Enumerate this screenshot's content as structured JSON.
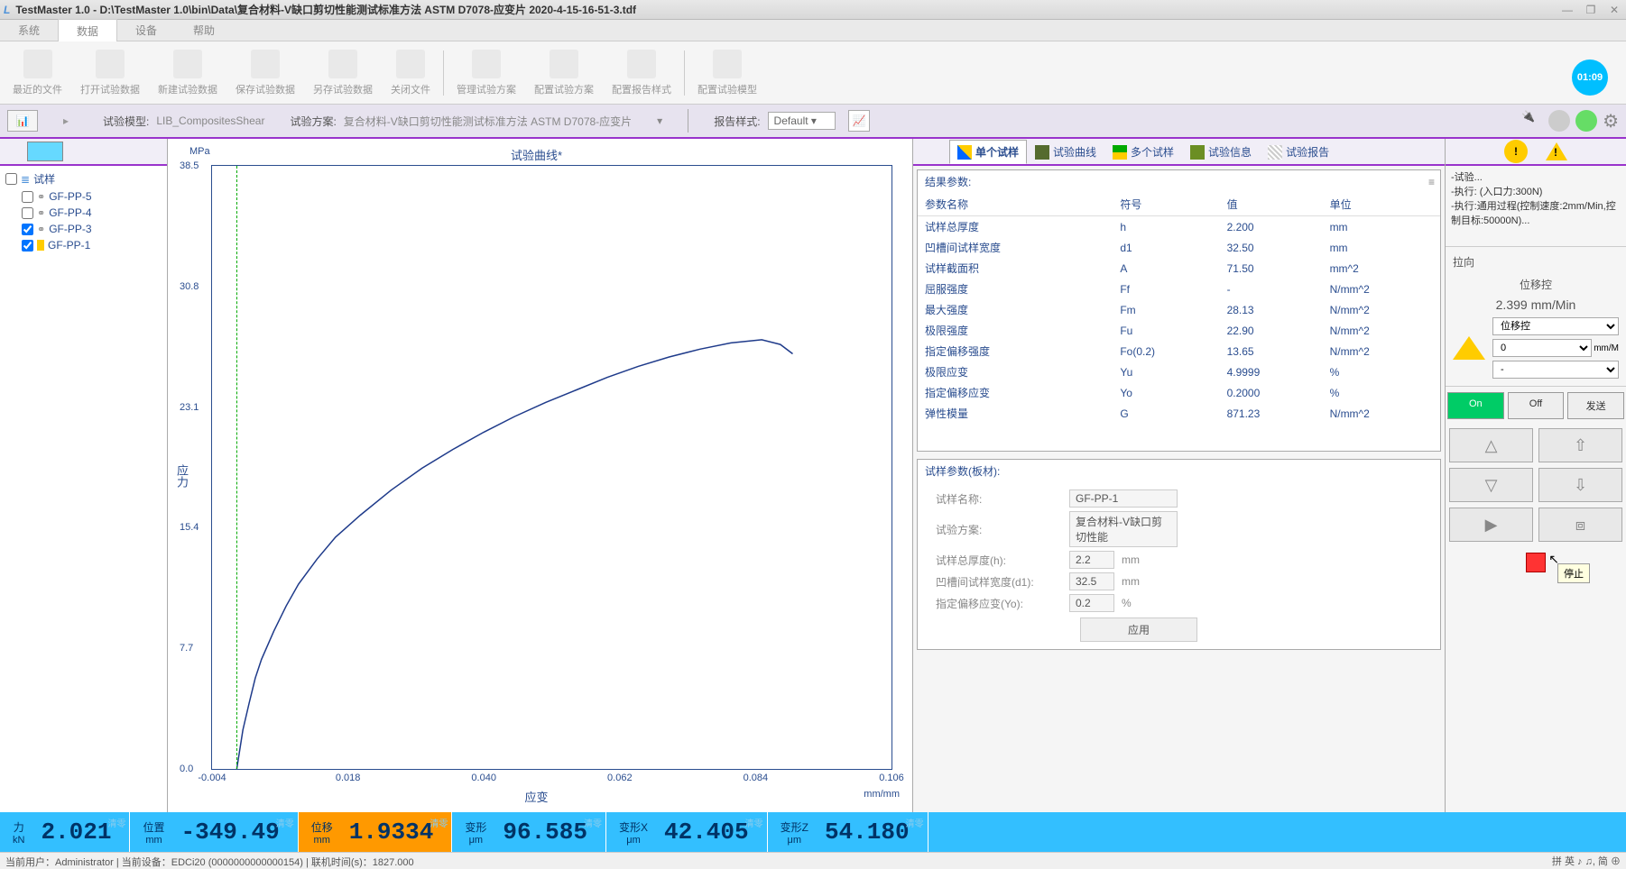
{
  "window": {
    "title": "TestMaster 1.0 - D:\\TestMaster 1.0\\bin\\Data\\复合材料-V缺口剪切性能测试标准方法 ASTM D7078-应变片 2020-4-15-16-51-3.tdf"
  },
  "menu": {
    "system": "系统",
    "data": "数据",
    "device": "设备",
    "help": "帮助"
  },
  "toolbar": {
    "recent": "最近的文件",
    "open": "打开试验数据",
    "new": "新建试验数据",
    "save": "保存试验数据",
    "saveas": "另存试验数据",
    "close": "关闭文件",
    "manage_scheme": "管理试验方案",
    "config_scheme": "配置试验方案",
    "config_report": "配置报告样式",
    "config_model": "配置试验模型",
    "clock": "01:09"
  },
  "paramBar": {
    "model_lbl": "试验模型:",
    "model_val": "LIB_CompositesShear",
    "scheme_lbl": "试验方案:",
    "scheme_val": "复合材料-V缺口剪切性能测试标准方法 ASTM D7078-应变片",
    "report_lbl": "报告样式:",
    "report_val": "Default"
  },
  "tree": {
    "root": "试样",
    "items": [
      {
        "label": "GF-PP-5",
        "checked": false
      },
      {
        "label": "GF-PP-4",
        "checked": false
      },
      {
        "label": "GF-PP-3",
        "checked": true
      },
      {
        "label": "GF-PP-1",
        "checked": true,
        "hl": true
      }
    ]
  },
  "chart": {
    "title": "试验曲线*",
    "yunit": "MPa",
    "ylabel": "应力",
    "xlabel": "应变",
    "xunit": "mm/mm",
    "yticks": [
      "0.0",
      "7.7",
      "15.4",
      "23.1",
      "30.8",
      "38.5"
    ],
    "xticks": [
      "-0.004",
      "0.018",
      "0.040",
      "0.062",
      "0.084",
      "0.106"
    ],
    "xlim": [
      -0.004,
      0.106
    ],
    "ylim": [
      0,
      38.5
    ],
    "curve_color": "#1e3a8a",
    "vline_x": 0.0,
    "curve": [
      [
        0.0,
        0.0
      ],
      [
        0.001,
        2.5
      ],
      [
        0.002,
        4.2
      ],
      [
        0.003,
        5.8
      ],
      [
        0.004,
        7.0
      ],
      [
        0.006,
        8.8
      ],
      [
        0.008,
        10.4
      ],
      [
        0.01,
        11.8
      ],
      [
        0.013,
        13.4
      ],
      [
        0.016,
        14.8
      ],
      [
        0.02,
        16.2
      ],
      [
        0.025,
        17.8
      ],
      [
        0.03,
        19.2
      ],
      [
        0.035,
        20.4
      ],
      [
        0.04,
        21.5
      ],
      [
        0.045,
        22.5
      ],
      [
        0.05,
        23.4
      ],
      [
        0.055,
        24.2
      ],
      [
        0.06,
        25.0
      ],
      [
        0.065,
        25.7
      ],
      [
        0.07,
        26.3
      ],
      [
        0.075,
        26.8
      ],
      [
        0.08,
        27.2
      ],
      [
        0.085,
        27.4
      ],
      [
        0.088,
        27.1
      ],
      [
        0.09,
        26.5
      ]
    ]
  },
  "tabs": {
    "t1": "单个试样",
    "t2": "试验曲线",
    "t3": "多个试样",
    "t4": "试验信息",
    "t5": "试验报告"
  },
  "results": {
    "header": "结果参数:",
    "cols": {
      "name": "参数名称",
      "sym": "符号",
      "val": "值",
      "unit": "单位"
    },
    "rows": [
      {
        "name": "试样总厚度",
        "sym": "h",
        "val": "2.200",
        "unit": "mm"
      },
      {
        "name": "凹槽间试样宽度",
        "sym": "d1",
        "val": "32.50",
        "unit": "mm"
      },
      {
        "name": "试样截面积",
        "sym": "A",
        "val": "71.50",
        "unit": "mm^2"
      },
      {
        "name": "屈服强度",
        "sym": "Ff",
        "val": "-",
        "unit": "N/mm^2"
      },
      {
        "name": "最大强度",
        "sym": "Fm",
        "val": "28.13",
        "unit": "N/mm^2"
      },
      {
        "name": "极限强度",
        "sym": "Fu",
        "val": "22.90",
        "unit": "N/mm^2"
      },
      {
        "name": "指定偏移强度",
        "sym": "Fo(0.2)",
        "val": "13.65",
        "unit": "N/mm^2"
      },
      {
        "name": "极限应变",
        "sym": "Yu",
        "val": "4.9999",
        "unit": "%"
      },
      {
        "name": "指定偏移应变",
        "sym": "Yo",
        "val": "0.2000",
        "unit": "%"
      },
      {
        "name": "弹性模量",
        "sym": "G",
        "val": "871.23",
        "unit": "N/mm^2"
      }
    ]
  },
  "sample": {
    "header": "试样参数(板材):",
    "name_lbl": "试样名称:",
    "name_val": "GF-PP-1",
    "scheme_lbl": "试验方案:",
    "scheme_val": "复合材料-V缺口剪切性能",
    "thick_lbl": "试样总厚度(h):",
    "thick_val": "2.2",
    "thick_unit": "mm",
    "width_lbl": "凹槽间试样宽度(d1):",
    "width_val": "32.5",
    "width_unit": "mm",
    "offset_lbl": "指定偏移应变(Yo):",
    "offset_val": "0.2",
    "offset_unit": "%",
    "apply": "应用"
  },
  "ctrl": {
    "log_lines": [
      "-试验...",
      "-执行: (入口力:300N)",
      "-执行:通用过程(控制速度:2mm/Min,控制目标:50000N)..."
    ],
    "direction": "拉向",
    "mode": "位移控",
    "rate": "2.399 mm/Min",
    "sel1": "位移控",
    "sel2": "0",
    "sel2_unit": "mm/M",
    "sel3": "-",
    "on": "On",
    "off": "Off",
    "send": "发送",
    "stop_tip": "停止"
  },
  "bottom": [
    {
      "label": "力",
      "unit": "kN",
      "val": "2.021",
      "clear": "清零"
    },
    {
      "label": "位置",
      "unit": "mm",
      "val": "-349.49",
      "clear": "清零"
    },
    {
      "label": "位移",
      "unit": "mm",
      "val": "1.9334",
      "clear": "清零",
      "orange": true
    },
    {
      "label": "变形",
      "unit": "μm",
      "val": "96.585",
      "clear": "清零"
    },
    {
      "label": "变形X",
      "unit": "μm",
      "val": "42.405",
      "clear": "清零"
    },
    {
      "label": "变形Z",
      "unit": "μm",
      "val": "54.180",
      "clear": "清零"
    }
  ],
  "status": {
    "left": "当前用户：Administrator  |  当前设备：EDCi20 (0000000000000154)  |  联机时间(s)：1827.000",
    "ime": "拼 英 ♪ ♫, 简 ⊕"
  }
}
